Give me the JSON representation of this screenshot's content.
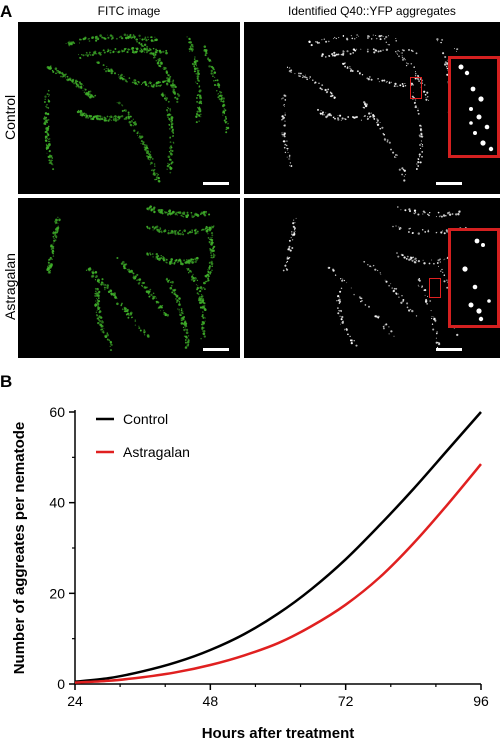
{
  "panel_a": {
    "letter": "A",
    "columns": [
      "FITC image",
      "Identified Q40::YFP aggregates"
    ],
    "rows": [
      "Control",
      "Astragalan"
    ],
    "colors": {
      "fitc": "#3fae2a",
      "aggregate": "#ffffff",
      "inset_border": "#d42020"
    }
  },
  "panel_b": {
    "letter": "B"
  },
  "chart_data": {
    "type": "line",
    "xlabel": "Hours after treatment",
    "ylabel": "Number of aggreates per nematode",
    "xlim": [
      24,
      96
    ],
    "ylim": [
      0,
      60
    ],
    "xticks": [
      "24",
      "48",
      "72",
      "96"
    ],
    "yticks": [
      "0",
      "20",
      "40",
      "60"
    ],
    "legend_position": "top-left",
    "series": [
      {
        "name": "Control",
        "color": "#000000",
        "x": [
          24,
          30,
          36,
          42,
          48,
          54,
          60,
          66,
          72,
          78,
          84,
          90,
          96
        ],
        "y": [
          0.5,
          1.3,
          2.8,
          4.8,
          7.5,
          11.0,
          15.5,
          21.0,
          27.5,
          35.0,
          43.0,
          51.5,
          60.0
        ]
      },
      {
        "name": "Astragalan",
        "color": "#e02020",
        "x": [
          24,
          30,
          36,
          42,
          48,
          54,
          60,
          66,
          72,
          78,
          84,
          90,
          96
        ],
        "y": [
          0.3,
          0.7,
          1.5,
          2.6,
          4.2,
          6.3,
          9.0,
          12.8,
          17.5,
          23.5,
          31.0,
          39.5,
          48.5
        ]
      }
    ]
  }
}
